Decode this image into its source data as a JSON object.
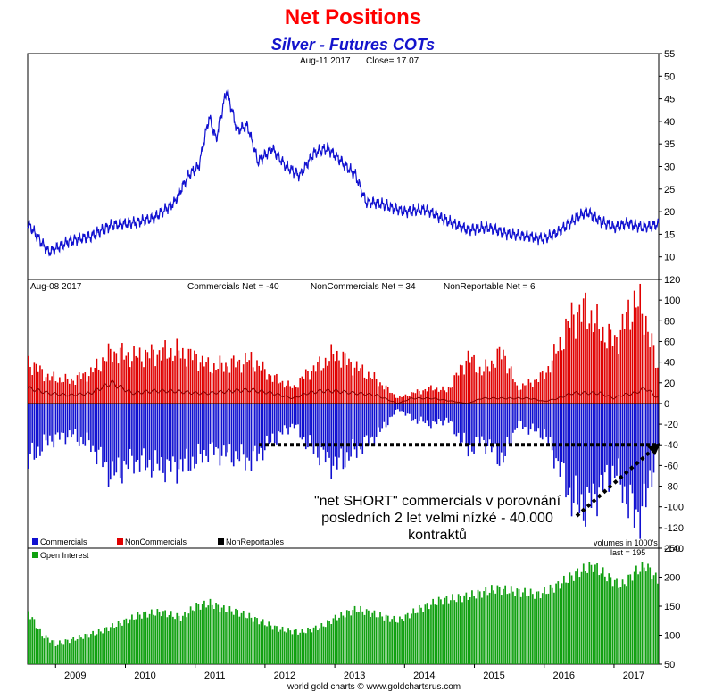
{
  "header": {
    "title": "Net Positions",
    "subtitle": "Silver - Futures COTs"
  },
  "footer": {
    "credit": "world gold charts © www.goldchartsrus.com"
  },
  "annotation": {
    "line1": "\"net SHORT\" commercials v porovnání",
    "line2": "posledních 2 let velmi nízké - 40.000",
    "line3": "kontraktů"
  },
  "colors": {
    "price": "#1010d0",
    "commercials": "#1010d0",
    "noncommercials": "#e00000",
    "nonreportables": "#000000",
    "open_interest": "#10a010",
    "frame": "#000000"
  },
  "chart_data": [
    {
      "type": "line",
      "panel": "price",
      "info_date": "Aug-11  2017",
      "info_close": "Close= 17.07",
      "ylim": [
        5,
        55
      ],
      "y_ticks": [
        10,
        15,
        20,
        25,
        30,
        35,
        40,
        45,
        50,
        55
      ],
      "x": [
        2008.6,
        2008.9,
        2009.2,
        2009.5,
        2009.8,
        2010.1,
        2010.4,
        2010.7,
        2010.9,
        2011.05,
        2011.2,
        2011.3,
        2011.45,
        2011.6,
        2011.75,
        2011.9,
        2012.1,
        2012.3,
        2012.5,
        2012.7,
        2012.9,
        2013.1,
        2013.3,
        2013.45,
        2013.6,
        2013.8,
        2014.0,
        2014.3,
        2014.6,
        2014.9,
        2015.2,
        2015.5,
        2015.8,
        2016.0,
        2016.2,
        2016.45,
        2016.6,
        2016.8,
        2017.0,
        2017.2,
        2017.4,
        2017.61
      ],
      "values": [
        17.5,
        11,
        13.5,
        14.5,
        17,
        17.5,
        18.5,
        22,
        28,
        30,
        41,
        36,
        47,
        38,
        39,
        31,
        34,
        30,
        28,
        33,
        34,
        31,
        28,
        22,
        22,
        21,
        20,
        20.5,
        18,
        16,
        16.5,
        15,
        14.5,
        14,
        15.5,
        18.5,
        20,
        18,
        16.5,
        17.5,
        16.5,
        17.07
      ]
    },
    {
      "type": "bar",
      "panel": "net_positions",
      "info_date": "Aug-08  2017",
      "info_commercials": "Commercials Net = -40",
      "info_noncommercials": "NonCommercials Net = 34",
      "info_nonreportable": "NonReportable Net = 6",
      "ylim": [
        -140,
        120
      ],
      "y_ticks": [
        -140,
        -120,
        -100,
        -80,
        -60,
        -40,
        -20,
        0,
        20,
        40,
        60,
        80,
        100,
        120
      ],
      "reference_line": -40,
      "x": [
        2008.6,
        2008.9,
        2009.2,
        2009.5,
        2009.8,
        2010.1,
        2010.4,
        2010.7,
        2011.0,
        2011.2,
        2011.5,
        2011.8,
        2012.1,
        2012.4,
        2012.6,
        2012.8,
        2013.0,
        2013.3,
        2013.6,
        2013.9,
        2014.1,
        2014.4,
        2014.6,
        2014.9,
        2015.1,
        2015.4,
        2015.6,
        2015.8,
        2016.0,
        2016.2,
        2016.4,
        2016.6,
        2016.8,
        2017.0,
        2017.1,
        2017.3,
        2017.45,
        2017.61
      ],
      "series": [
        {
          "name": "Commercials",
          "values": [
            -55,
            -35,
            -30,
            -40,
            -70,
            -55,
            -60,
            -62,
            -55,
            -45,
            -50,
            -55,
            -35,
            -20,
            -40,
            -50,
            -60,
            -45,
            -30,
            -5,
            -15,
            -20,
            -15,
            -45,
            -35,
            -55,
            -20,
            -25,
            -30,
            -60,
            -95,
            -100,
            -80,
            -65,
            -80,
            -110,
            -95,
            -40
          ]
        },
        {
          "name": "NonCommercials",
          "values": [
            40,
            25,
            22,
            30,
            50,
            45,
            48,
            50,
            45,
            35,
            38,
            42,
            25,
            15,
            30,
            38,
            48,
            35,
            22,
            5,
            10,
            15,
            12,
            45,
            30,
            50,
            15,
            20,
            28,
            55,
            85,
            90,
            70,
            60,
            72,
            100,
            80,
            34
          ]
        },
        {
          "name": "NonReportables",
          "values": [
            15,
            10,
            8,
            10,
            20,
            10,
            12,
            12,
            10,
            10,
            12,
            13,
            10,
            5,
            10,
            12,
            12,
            10,
            8,
            0,
            5,
            5,
            3,
            0,
            5,
            5,
            5,
            5,
            2,
            5,
            10,
            10,
            10,
            5,
            8,
            10,
            15,
            6
          ]
        }
      ]
    },
    {
      "type": "bar",
      "panel": "open_interest",
      "units_note": "volumes in 1000's",
      "last_label": "last = 195",
      "ylim": [
        50,
        250
      ],
      "y_ticks": [
        50,
        100,
        150,
        200,
        250
      ],
      "series_name": "Open Interest",
      "x": [
        2008.6,
        2008.8,
        2009.0,
        2009.3,
        2009.6,
        2009.9,
        2010.2,
        2010.5,
        2010.8,
        2011.0,
        2011.2,
        2011.4,
        2011.6,
        2011.9,
        2012.2,
        2012.5,
        2012.8,
        2013.0,
        2013.3,
        2013.6,
        2013.9,
        2014.2,
        2014.5,
        2014.8,
        2015.0,
        2015.3,
        2015.6,
        2015.9,
        2016.1,
        2016.3,
        2016.5,
        2016.7,
        2016.9,
        2017.1,
        2017.3,
        2017.45,
        2017.61
      ],
      "values": [
        140,
        100,
        85,
        95,
        105,
        120,
        135,
        140,
        130,
        150,
        155,
        145,
        140,
        125,
        110,
        105,
        115,
        130,
        145,
        135,
        125,
        145,
        160,
        165,
        170,
        180,
        175,
        170,
        180,
        195,
        210,
        220,
        200,
        185,
        210,
        220,
        195
      ]
    }
  ],
  "legend": {
    "commercials": "Commercials",
    "noncommercials": "NonCommercials",
    "nonreportables": "NonReportables",
    "open_interest": "Open Interest"
  },
  "x_axis": {
    "ticks": [
      "2009",
      "2010",
      "2011",
      "2012",
      "2013",
      "2014",
      "2015",
      "2016",
      "2017"
    ],
    "tick_values": [
      2009,
      2010,
      2011,
      2012,
      2013,
      2014,
      2015,
      2016,
      2017
    ],
    "range": [
      2008.6,
      2017.64
    ]
  }
}
